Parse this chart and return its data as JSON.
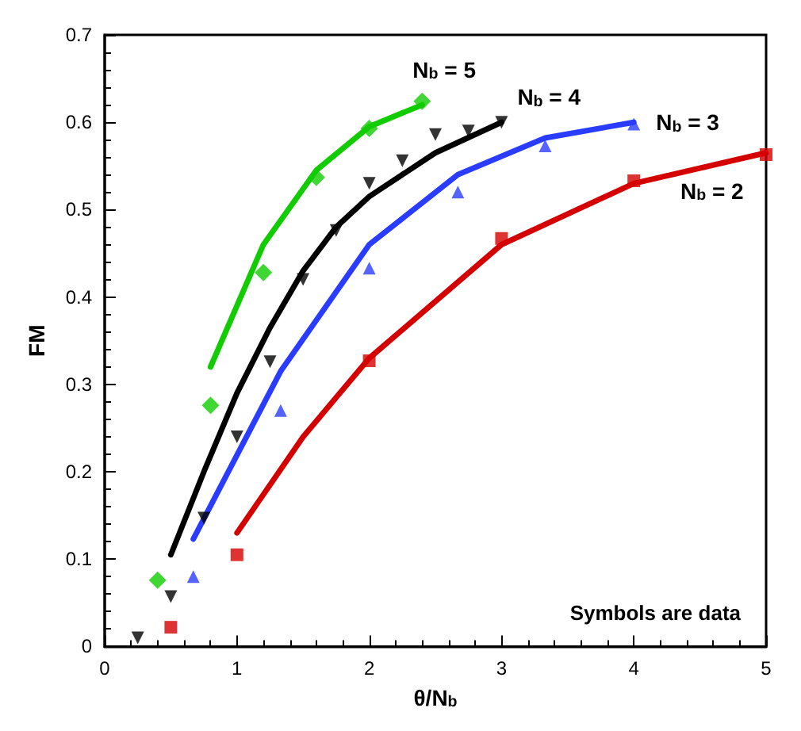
{
  "chart_data": {
    "type": "line",
    "xlabel": "θ/N$_{b}$",
    "ylabel": "FM",
    "xlim": [
      0,
      5
    ],
    "xticks": [
      0,
      1,
      2,
      3,
      4,
      5
    ],
    "ylim": [
      0,
      0.7
    ],
    "yticks": [
      0,
      0.1,
      0.2,
      0.3,
      0.4,
      0.5,
      0.6,
      0.7
    ],
    "grid": false,
    "legend": false,
    "line_style": "solid",
    "annotations": [
      "Symbols are data"
    ],
    "series": [
      {
        "type": "scatter",
        "marker": "square",
        "color": "#d40000",
        "x": [
          0.5,
          1.0,
          2.0,
          3.0,
          4.0,
          5.0
        ],
        "values": [
          0.022,
          0.105,
          0.327,
          0.467,
          0.533,
          0.563
        ]
      },
      {
        "name": "N$_{b}$ = 2",
        "marker": "none",
        "color": "#d40000",
        "x": [
          1.0,
          1.5,
          2.0,
          3.0,
          4.0,
          5.0
        ],
        "values": [
          0.13,
          0.24,
          0.33,
          0.46,
          0.53,
          0.565
        ]
      },
      {
        "type": "scatter",
        "marker": "triangle",
        "color": "#2a3cff",
        "x": [
          0.67,
          1.33,
          2.0,
          2.67,
          3.33,
          4.0
        ],
        "values": [
          0.08,
          0.27,
          0.433,
          0.52,
          0.573,
          0.598
        ]
      },
      {
        "name": "N$_{b}$ = 3",
        "marker": "none",
        "color": "#2a3cff",
        "x": [
          0.67,
          1.33,
          2.0,
          2.67,
          3.33,
          4.0
        ],
        "values": [
          0.123,
          0.315,
          0.46,
          0.54,
          0.582,
          0.6
        ]
      },
      {
        "type": "scatter",
        "marker": "triangle-down",
        "color": "#000000",
        "x": [
          0.25,
          0.5,
          0.75,
          1.0,
          1.25,
          1.5,
          1.75,
          2.0,
          2.25,
          2.5,
          2.75,
          3.0
        ],
        "values": [
          0.01,
          0.057,
          0.147,
          0.24,
          0.326,
          0.42,
          0.476,
          0.53,
          0.556,
          0.586,
          0.59,
          0.6
        ]
      },
      {
        "name": "N$_{b}$ = 4",
        "marker": "none",
        "color": "#000000",
        "x": [
          0.5,
          0.75,
          1.0,
          1.25,
          1.5,
          1.75,
          2.0,
          2.5,
          3.0
        ],
        "values": [
          0.105,
          0.2,
          0.29,
          0.365,
          0.43,
          0.48,
          0.515,
          0.565,
          0.6
        ]
      },
      {
        "type": "scatter",
        "marker": "diamond",
        "color": "#10cc00",
        "x": [
          0.4,
          0.8,
          1.2,
          1.6,
          2.0,
          2.4
        ],
        "values": [
          0.076,
          0.276,
          0.428,
          0.537,
          0.593,
          0.624
        ]
      },
      {
        "name": "N$_{b}$ = 5",
        "marker": "none",
        "color": "#10cc00",
        "x": [
          0.8,
          1.2,
          1.6,
          2.0,
          2.4
        ],
        "values": [
          0.32,
          0.46,
          0.545,
          0.595,
          0.62
        ]
      }
    ]
  }
}
